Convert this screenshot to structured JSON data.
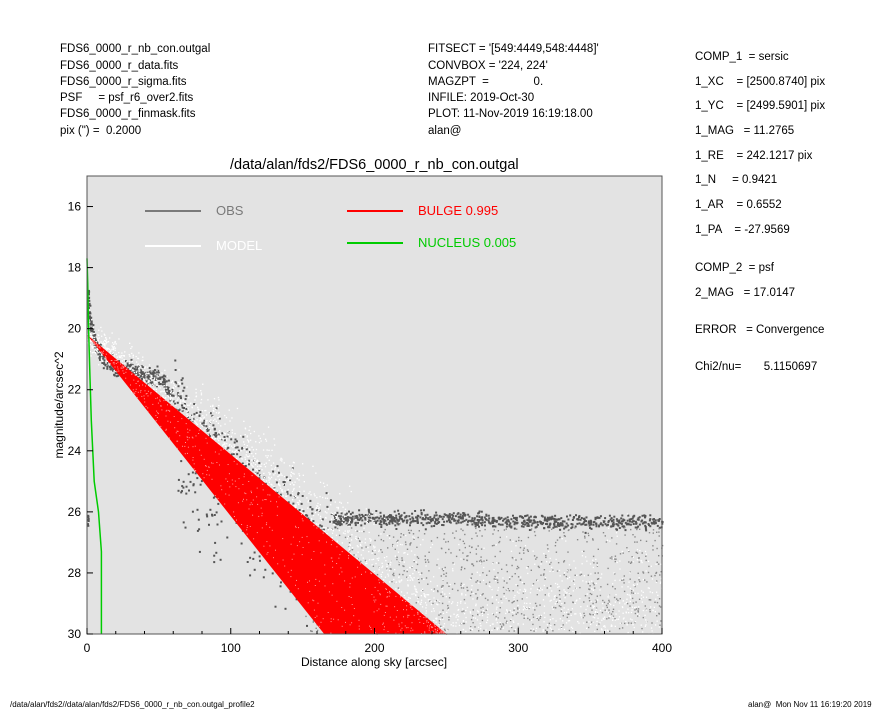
{
  "header_left": [
    "FDS6_0000_r_nb_con.outgal",
    "FDS6_0000_r_data.fits",
    "FDS6_0000_r_sigma.fits",
    "PSF     = psf_r6_over2.fits",
    "FDS6_0000_r_finmask.fits",
    "pix (\") =  0.2000"
  ],
  "header_mid": [
    "FITSECT = '[549:4449,548:4448]'",
    "CONVBOX = '224, 224'",
    "MAGZPT  =              0.",
    "INFILE: 2019-Oct-30",
    "PLOT: 11-Nov-2019 16:19:18.00",
    "alan@"
  ],
  "params_right": [
    "COMP_1  = sersic",
    "1_XC    = [2500.8740] pix",
    "1_YC    = [2499.5901] pix",
    "1_MAG   = 11.2765",
    "1_RE    = 242.1217 pix",
    "1_N     = 0.9421",
    "1_AR    = 0.6552",
    "1_PA    = -27.9569",
    "",
    "COMP_2  = psf",
    "2_MAG   = 17.0147",
    "",
    "ERROR   = Convergence",
    "",
    "Chi2/nu=       5.1150697"
  ],
  "footer": {
    "left": "/data/alan/fds2//data/alan/fds2/FDS6_0000_r_nb_con.outgal_profile2",
    "right": "alan@  Mon Nov 11 16:19:20 2019"
  },
  "chart_data": {
    "type": "scatter",
    "title": "/data/alan/fds2/FDS6_0000_r_nb_con.outgal",
    "xlabel": "Distance along sky [arcsec]",
    "ylabel": "magnitude/arcsec^2",
    "xlim": [
      0,
      400
    ],
    "ylim": [
      30,
      15
    ],
    "y_inverted": true,
    "x_ticks": [
      0,
      100,
      200,
      300,
      400
    ],
    "y_ticks": [
      16,
      18,
      20,
      22,
      24,
      26,
      28,
      30
    ],
    "background_color": "#e3e3e3",
    "legend": [
      {
        "label": "OBS",
        "color": "#7a7a7a"
      },
      {
        "label": "BULGE  0.995",
        "color": "#ff0000"
      },
      {
        "label": "MODEL",
        "color": "#ffffff"
      },
      {
        "label": "NUCLEUS  0.005",
        "color": "#00cc00"
      }
    ],
    "series": [
      {
        "name": "OBS",
        "color": "#555555",
        "points": [
          [
            0.5,
            18.8
          ],
          [
            1,
            19.3
          ],
          [
            2,
            19.8
          ],
          [
            4,
            20.2
          ],
          [
            6,
            20.5
          ],
          [
            10,
            20.9
          ],
          [
            15,
            21.1
          ],
          [
            20,
            21.3
          ],
          [
            30,
            21.4
          ],
          [
            40,
            21.5
          ],
          [
            50,
            21.6
          ],
          [
            55,
            21.9
          ],
          [
            60,
            22.3
          ],
          [
            80,
            23.5
          ],
          [
            100,
            24.4
          ],
          [
            120,
            25.3
          ],
          [
            140,
            26.0
          ],
          [
            160,
            26.5
          ],
          [
            180,
            26.2
          ],
          [
            200,
            26.2
          ],
          [
            250,
            26.2
          ],
          [
            300,
            26.3
          ],
          [
            350,
            26.3
          ],
          [
            400,
            26.3
          ]
        ]
      },
      {
        "name": "MODEL",
        "color": "#ffffff",
        "points": [
          [
            0,
            20.2
          ],
          [
            50,
            22.0
          ],
          [
            100,
            23.9
          ],
          [
            150,
            25.9
          ],
          [
            200,
            27.8
          ],
          [
            250,
            29.8
          ],
          [
            400,
            29.8
          ]
        ]
      },
      {
        "name": "BULGE  0.995",
        "color": "#ff0000",
        "band_upper": [
          [
            0,
            20.2
          ],
          [
            250,
            30
          ]
        ],
        "band_lower": [
          [
            0,
            20.2
          ],
          [
            165,
            30
          ]
        ]
      },
      {
        "name": "NUCLEUS  0.005",
        "color": "#00cc00",
        "points": [
          [
            0,
            17.7
          ],
          [
            0.5,
            18.5
          ],
          [
            1,
            19.8
          ],
          [
            2,
            21.5
          ],
          [
            3,
            23.0
          ],
          [
            5,
            25.0
          ],
          [
            8,
            26.0
          ],
          [
            10,
            27.3
          ],
          [
            10,
            30
          ]
        ]
      }
    ]
  }
}
